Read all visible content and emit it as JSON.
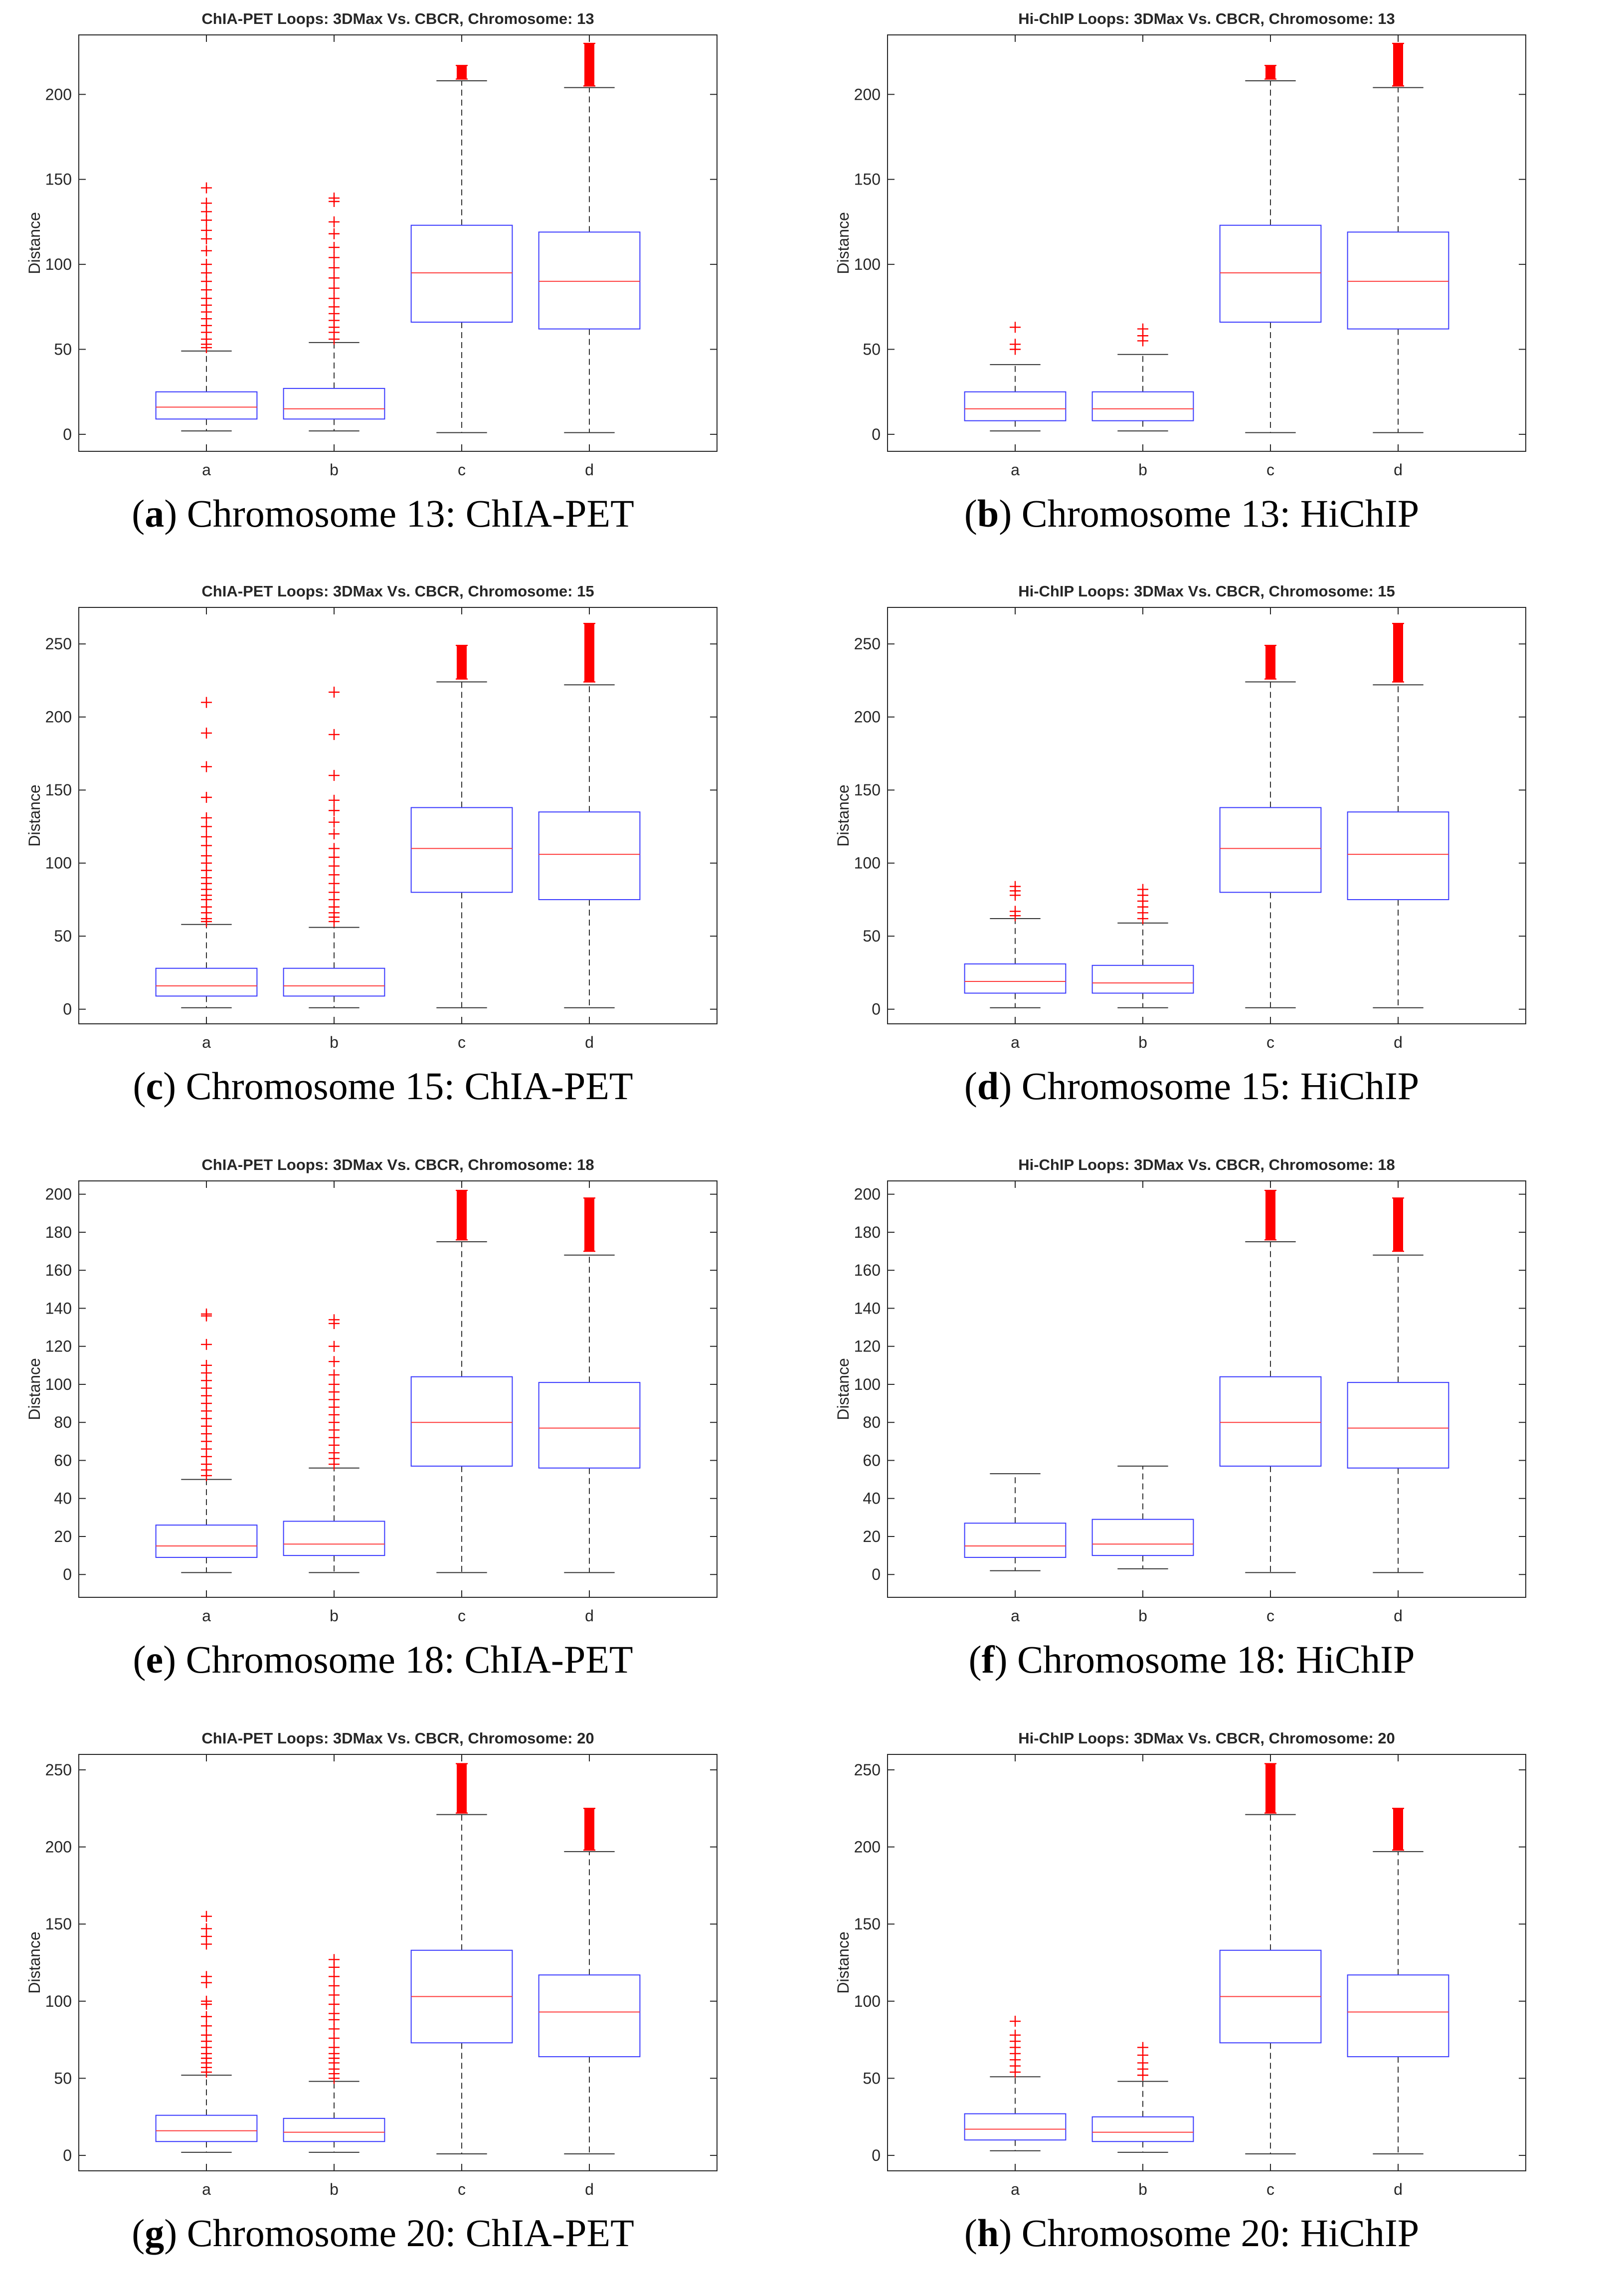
{
  "chart_data": [
    {
      "type": "box",
      "title": "ChIA-PET Loops: 3DMax Vs. CBCR, Chromosome: 13",
      "caption_letter": "a",
      "caption_text": "Chromosome 13: ChIA-PET",
      "ylabel": "Distance",
      "xlabel": "",
      "ylim": [
        -10,
        235
      ],
      "yticks": [
        0,
        50,
        100,
        150,
        200
      ],
      "categories": [
        "a",
        "b",
        "c",
        "d"
      ],
      "boxes": [
        {
          "label": "a",
          "min": 2,
          "q1": 9,
          "median": 16,
          "q3": 25,
          "max": 49,
          "outliers": [
            51,
            53,
            56,
            60,
            64,
            68,
            72,
            76,
            80,
            85,
            90,
            95,
            100,
            108,
            115,
            120,
            126,
            131,
            136,
            145
          ]
        },
        {
          "label": "b",
          "min": 2,
          "q1": 9,
          "median": 15,
          "q3": 27,
          "max": 54,
          "outliers": [
            56,
            60,
            63,
            67,
            71,
            75,
            80,
            86,
            92,
            98,
            104,
            110,
            118,
            125,
            137,
            139
          ]
        },
        {
          "label": "c",
          "min": 1,
          "q1": 66,
          "median": 95,
          "q3": 123,
          "max": 208,
          "outliers_band": [
            209,
            217
          ]
        },
        {
          "label": "d",
          "min": 1,
          "q1": 62,
          "median": 90,
          "q3": 119,
          "max": 204,
          "outliers_band": [
            205,
            230
          ]
        }
      ]
    },
    {
      "type": "box",
      "title": "Hi-ChIP Loops: 3DMax Vs. CBCR, Chromosome: 13",
      "caption_letter": "b",
      "caption_text": "Chromosome 13: HiChIP",
      "ylabel": "Distance",
      "xlabel": "",
      "ylim": [
        -10,
        235
      ],
      "yticks": [
        0,
        50,
        100,
        150,
        200
      ],
      "categories": [
        "a",
        "b",
        "c",
        "d"
      ],
      "boxes": [
        {
          "label": "a",
          "min": 2,
          "q1": 8,
          "median": 15,
          "q3": 25,
          "max": 41,
          "outliers": [
            50,
            53,
            63
          ]
        },
        {
          "label": "b",
          "min": 2,
          "q1": 8,
          "median": 15,
          "q3": 25,
          "max": 47,
          "outliers": [
            55,
            58,
            62
          ]
        },
        {
          "label": "c",
          "min": 1,
          "q1": 66,
          "median": 95,
          "q3": 123,
          "max": 208,
          "outliers_band": [
            209,
            217
          ]
        },
        {
          "label": "d",
          "min": 1,
          "q1": 62,
          "median": 90,
          "q3": 119,
          "max": 204,
          "outliers_band": [
            205,
            230
          ]
        }
      ]
    },
    {
      "type": "box",
      "title": "ChIA-PET Loops: 3DMax Vs. CBCR, Chromosome: 15",
      "caption_letter": "c",
      "caption_text": "Chromosome 15: ChIA-PET",
      "ylabel": "Distance",
      "xlabel": "",
      "ylim": [
        -10,
        275
      ],
      "yticks": [
        0,
        50,
        100,
        150,
        200,
        250
      ],
      "categories": [
        "a",
        "b",
        "c",
        "d"
      ],
      "boxes": [
        {
          "label": "a",
          "min": 1,
          "q1": 9,
          "median": 16,
          "q3": 28,
          "max": 58,
          "outliers": [
            60,
            62,
            66,
            70,
            75,
            78,
            82,
            86,
            90,
            95,
            100,
            105,
            112,
            118,
            125,
            131,
            145,
            166,
            189,
            210
          ]
        },
        {
          "label": "b",
          "min": 1,
          "q1": 9,
          "median": 16,
          "q3": 28,
          "max": 56,
          "outliers": [
            60,
            63,
            66,
            70,
            75,
            80,
            86,
            92,
            98,
            104,
            110,
            120,
            128,
            136,
            143,
            160,
            188,
            217
          ]
        },
        {
          "label": "c",
          "min": 1,
          "q1": 80,
          "median": 110,
          "q3": 138,
          "max": 224,
          "outliers_band": [
            226,
            249
          ]
        },
        {
          "label": "d",
          "min": 1,
          "q1": 75,
          "median": 106,
          "q3": 135,
          "max": 222,
          "outliers_band": [
            224,
            264
          ]
        }
      ]
    },
    {
      "type": "box",
      "title": "Hi-ChIP Loops: 3DMax Vs. CBCR, Chromosome: 15",
      "caption_letter": "d",
      "caption_text": "Chromosome 15: HiChIP",
      "ylabel": "Distance",
      "xlabel": "",
      "ylim": [
        -10,
        275
      ],
      "yticks": [
        0,
        50,
        100,
        150,
        200,
        250
      ],
      "categories": [
        "a",
        "b",
        "c",
        "d"
      ],
      "boxes": [
        {
          "label": "a",
          "min": 1,
          "q1": 11,
          "median": 19,
          "q3": 31,
          "max": 62,
          "outliers": [
            64,
            67,
            78,
            81,
            84
          ]
        },
        {
          "label": "b",
          "min": 1,
          "q1": 11,
          "median": 18,
          "q3": 30,
          "max": 59,
          "outliers": [
            62,
            66,
            70,
            74,
            78,
            82
          ]
        },
        {
          "label": "c",
          "min": 1,
          "q1": 80,
          "median": 110,
          "q3": 138,
          "max": 224,
          "outliers_band": [
            226,
            249
          ]
        },
        {
          "label": "d",
          "min": 1,
          "q1": 75,
          "median": 106,
          "q3": 135,
          "max": 222,
          "outliers_band": [
            224,
            264
          ]
        }
      ]
    },
    {
      "type": "box",
      "title": "ChIA-PET Loops: 3DMax Vs. CBCR, Chromosome: 18",
      "caption_letter": "e",
      "caption_text": "Chromosome 18: ChIA-PET",
      "ylabel": "Distance",
      "xlabel": "",
      "ylim": [
        -12,
        207
      ],
      "yticks": [
        0,
        20,
        40,
        60,
        80,
        100,
        120,
        140,
        160,
        180,
        200
      ],
      "categories": [
        "a",
        "b",
        "c",
        "d"
      ],
      "boxes": [
        {
          "label": "a",
          "min": 1,
          "q1": 9,
          "median": 15,
          "q3": 26,
          "max": 50,
          "outliers": [
            52,
            55,
            58,
            62,
            66,
            70,
            74,
            78,
            82,
            86,
            90,
            94,
            98,
            102,
            106,
            110,
            121,
            136,
            137
          ]
        },
        {
          "label": "b",
          "min": 1,
          "q1": 10,
          "median": 16,
          "q3": 28,
          "max": 56,
          "outliers": [
            58,
            61,
            64,
            68,
            72,
            76,
            80,
            84,
            88,
            92,
            96,
            100,
            105,
            112,
            120,
            132,
            134
          ]
        },
        {
          "label": "c",
          "min": 1,
          "q1": 57,
          "median": 80,
          "q3": 104,
          "max": 175,
          "outliers_band": [
            176,
            202
          ]
        },
        {
          "label": "d",
          "min": 1,
          "q1": 56,
          "median": 77,
          "q3": 101,
          "max": 168,
          "outliers_band": [
            170,
            198
          ]
        }
      ]
    },
    {
      "type": "box",
      "title": "Hi-ChIP Loops: 3DMax Vs. CBCR, Chromosome: 18",
      "caption_letter": "f",
      "caption_text": "Chromosome 18: HiChIP",
      "ylabel": "Distance",
      "xlabel": "",
      "ylim": [
        -12,
        207
      ],
      "yticks": [
        0,
        20,
        40,
        60,
        80,
        100,
        120,
        140,
        160,
        180,
        200
      ],
      "categories": [
        "a",
        "b",
        "c",
        "d"
      ],
      "boxes": [
        {
          "label": "a",
          "min": 2,
          "q1": 9,
          "median": 15,
          "q3": 27,
          "max": 53,
          "outliers": []
        },
        {
          "label": "b",
          "min": 3,
          "q1": 10,
          "median": 16,
          "q3": 29,
          "max": 57,
          "outliers": []
        },
        {
          "label": "c",
          "min": 1,
          "q1": 57,
          "median": 80,
          "q3": 104,
          "max": 175,
          "outliers_band": [
            176,
            202
          ]
        },
        {
          "label": "d",
          "min": 1,
          "q1": 56,
          "median": 77,
          "q3": 101,
          "max": 168,
          "outliers_band": [
            170,
            198
          ]
        }
      ]
    },
    {
      "type": "box",
      "title": "ChIA-PET Loops: 3DMax Vs. CBCR, Chromosome: 20",
      "caption_letter": "g",
      "caption_text": "Chromosome 20: ChIA-PET",
      "ylabel": "Distance",
      "xlabel": "",
      "ylim": [
        -10,
        260
      ],
      "yticks": [
        0,
        50,
        100,
        150,
        200,
        250
      ],
      "categories": [
        "a",
        "b",
        "c",
        "d"
      ],
      "boxes": [
        {
          "label": "a",
          "min": 2,
          "q1": 9,
          "median": 16,
          "q3": 26,
          "max": 52,
          "outliers": [
            54,
            57,
            60,
            63,
            66,
            70,
            74,
            78,
            84,
            90,
            98,
            100,
            112,
            116,
            137,
            142,
            147,
            155
          ]
        },
        {
          "label": "b",
          "min": 2,
          "q1": 9,
          "median": 15,
          "q3": 24,
          "max": 48,
          "outliers": [
            50,
            53,
            56,
            60,
            63,
            66,
            70,
            76,
            82,
            88,
            92,
            98,
            104,
            110,
            116,
            122,
            127
          ]
        },
        {
          "label": "c",
          "min": 1,
          "q1": 73,
          "median": 103,
          "q3": 133,
          "max": 221,
          "outliers_band": [
            222,
            254
          ]
        },
        {
          "label": "d",
          "min": 1,
          "q1": 64,
          "median": 93,
          "q3": 117,
          "max": 197,
          "outliers_band": [
            198,
            225
          ]
        }
      ]
    },
    {
      "type": "box",
      "title": "Hi-ChIP Loops: 3DMax Vs. CBCR, Chromosome: 20",
      "caption_letter": "h",
      "caption_text": "Chromosome 20: HiChIP",
      "ylabel": "Distance",
      "xlabel": "",
      "ylim": [
        -10,
        260
      ],
      "yticks": [
        0,
        50,
        100,
        150,
        200,
        250
      ],
      "categories": [
        "a",
        "b",
        "c",
        "d"
      ],
      "boxes": [
        {
          "label": "a",
          "min": 3,
          "q1": 10,
          "median": 17,
          "q3": 27,
          "max": 51,
          "outliers": [
            54,
            58,
            62,
            66,
            70,
            74,
            78,
            87
          ]
        },
        {
          "label": "b",
          "min": 2,
          "q1": 9,
          "median": 15,
          "q3": 25,
          "max": 48,
          "outliers": [
            52,
            56,
            60,
            65,
            70
          ]
        },
        {
          "label": "c",
          "min": 1,
          "q1": 73,
          "median": 103,
          "q3": 133,
          "max": 221,
          "outliers_band": [
            222,
            254
          ]
        },
        {
          "label": "d",
          "min": 1,
          "q1": 64,
          "median": 93,
          "q3": 117,
          "max": 197,
          "outliers_band": [
            198,
            225
          ]
        }
      ]
    }
  ],
  "style": {
    "box_color": "#3a3aff",
    "median_color": "#ff3b3b",
    "whisker_color": "#333333",
    "outlier_color": "#ff0000",
    "axis_color": "#262626"
  }
}
